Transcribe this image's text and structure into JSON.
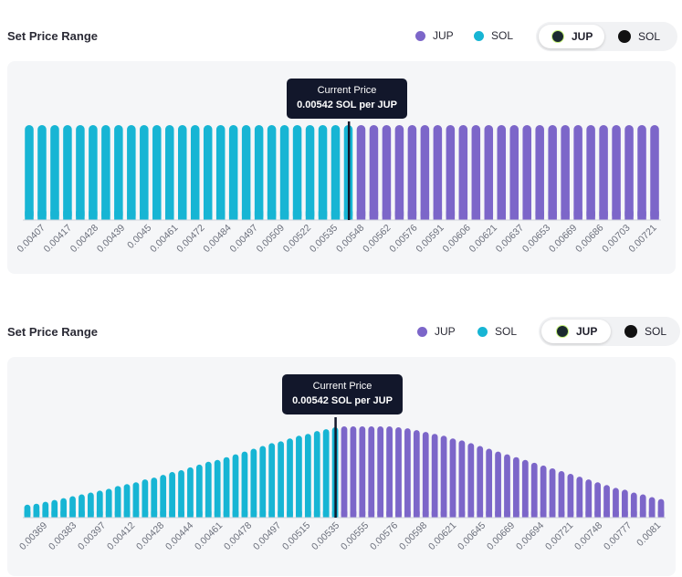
{
  "panels": [
    {
      "title": "Set Price Range",
      "legend": [
        {
          "label": "JUP",
          "color": "#7c66c9"
        },
        {
          "label": "SOL",
          "color": "#17b5d4"
        }
      ],
      "toggle": {
        "options": [
          {
            "label": "JUP",
            "icon": "jupiter-icon"
          },
          {
            "label": "SOL",
            "icon": "solana-icon"
          }
        ],
        "selected": "JUP"
      },
      "tooltip": {
        "title": "Current Price",
        "value": "0.00542 SOL per JUP"
      }
    },
    {
      "title": "Set Price Range",
      "legend": [
        {
          "label": "JUP",
          "color": "#7c66c9"
        },
        {
          "label": "SOL",
          "color": "#17b5d4"
        }
      ],
      "toggle": {
        "options": [
          {
            "label": "JUP",
            "icon": "jupiter-icon"
          },
          {
            "label": "SOL",
            "icon": "solana-icon"
          }
        ],
        "selected": "JUP"
      },
      "tooltip": {
        "title": "Current Price",
        "value": "0.00542 SOL per JUP"
      }
    }
  ],
  "chart_data": [
    {
      "type": "bar",
      "title": "Set Price Range",
      "current_price": 0.00542,
      "current_bar_index": 25,
      "colors": {
        "sol": "#17b5d4",
        "jup": "#7c66c9"
      },
      "tick_labels": [
        "0.00407",
        "0.00417",
        "0.00428",
        "0.00439",
        "0.0045",
        "0.00461",
        "0.00472",
        "0.00484",
        "0.00497",
        "0.00509",
        "0.00522",
        "0.00535",
        "0.00548",
        "0.00562",
        "0.00576",
        "0.00591",
        "0.00606",
        "0.00621",
        "0.00637",
        "0.00653",
        "0.00669",
        "0.00686",
        "0.00703",
        "0.00721"
      ],
      "series": [
        {
          "name": "SOL",
          "values": [
            1,
            1,
            1,
            1,
            1,
            1,
            1,
            1,
            1,
            1,
            1,
            1,
            1,
            1,
            1,
            1,
            1,
            1,
            1,
            1,
            1,
            1,
            1,
            1,
            1,
            1
          ]
        },
        {
          "name": "JUP",
          "values": [
            1,
            1,
            1,
            1,
            1,
            1,
            1,
            1,
            1,
            1,
            1,
            1,
            1,
            1,
            1,
            1,
            1,
            1,
            1,
            1,
            1,
            1,
            1,
            1
          ]
        }
      ]
    },
    {
      "type": "bar",
      "title": "Set Price Range",
      "current_price": 0.00542,
      "current_bar_index": 34,
      "colors": {
        "sol": "#17b5d4",
        "jup": "#7c66c9"
      },
      "tick_labels": [
        "0.00369",
        "0.00383",
        "0.00397",
        "0.00412",
        "0.00428",
        "0.00444",
        "0.00461",
        "0.00478",
        "0.00497",
        "0.00515",
        "0.00535",
        "0.00555",
        "0.00576",
        "0.00598",
        "0.00621",
        "0.00645",
        "0.00669",
        "0.00694",
        "0.00721",
        "0.00748",
        "0.00777",
        "0.0081"
      ],
      "series": [
        {
          "name": "SOL",
          "values": [
            0.14,
            0.15,
            0.17,
            0.19,
            0.21,
            0.23,
            0.25,
            0.27,
            0.29,
            0.31,
            0.34,
            0.36,
            0.38,
            0.41,
            0.43,
            0.46,
            0.49,
            0.51,
            0.54,
            0.57,
            0.6,
            0.62,
            0.65,
            0.68,
            0.71,
            0.74,
            0.77,
            0.8,
            0.82,
            0.85,
            0.88,
            0.9,
            0.93,
            0.95,
            0.97
          ]
        },
        {
          "name": "JUP",
          "values": [
            0.98,
            0.98,
            0.98,
            0.98,
            0.98,
            0.98,
            0.97,
            0.96,
            0.94,
            0.92,
            0.9,
            0.88,
            0.85,
            0.83,
            0.8,
            0.77,
            0.74,
            0.71,
            0.68,
            0.65,
            0.62,
            0.59,
            0.56,
            0.53,
            0.5,
            0.47,
            0.44,
            0.41,
            0.38,
            0.35,
            0.32,
            0.3,
            0.27,
            0.25,
            0.22,
            0.2
          ]
        }
      ]
    }
  ]
}
